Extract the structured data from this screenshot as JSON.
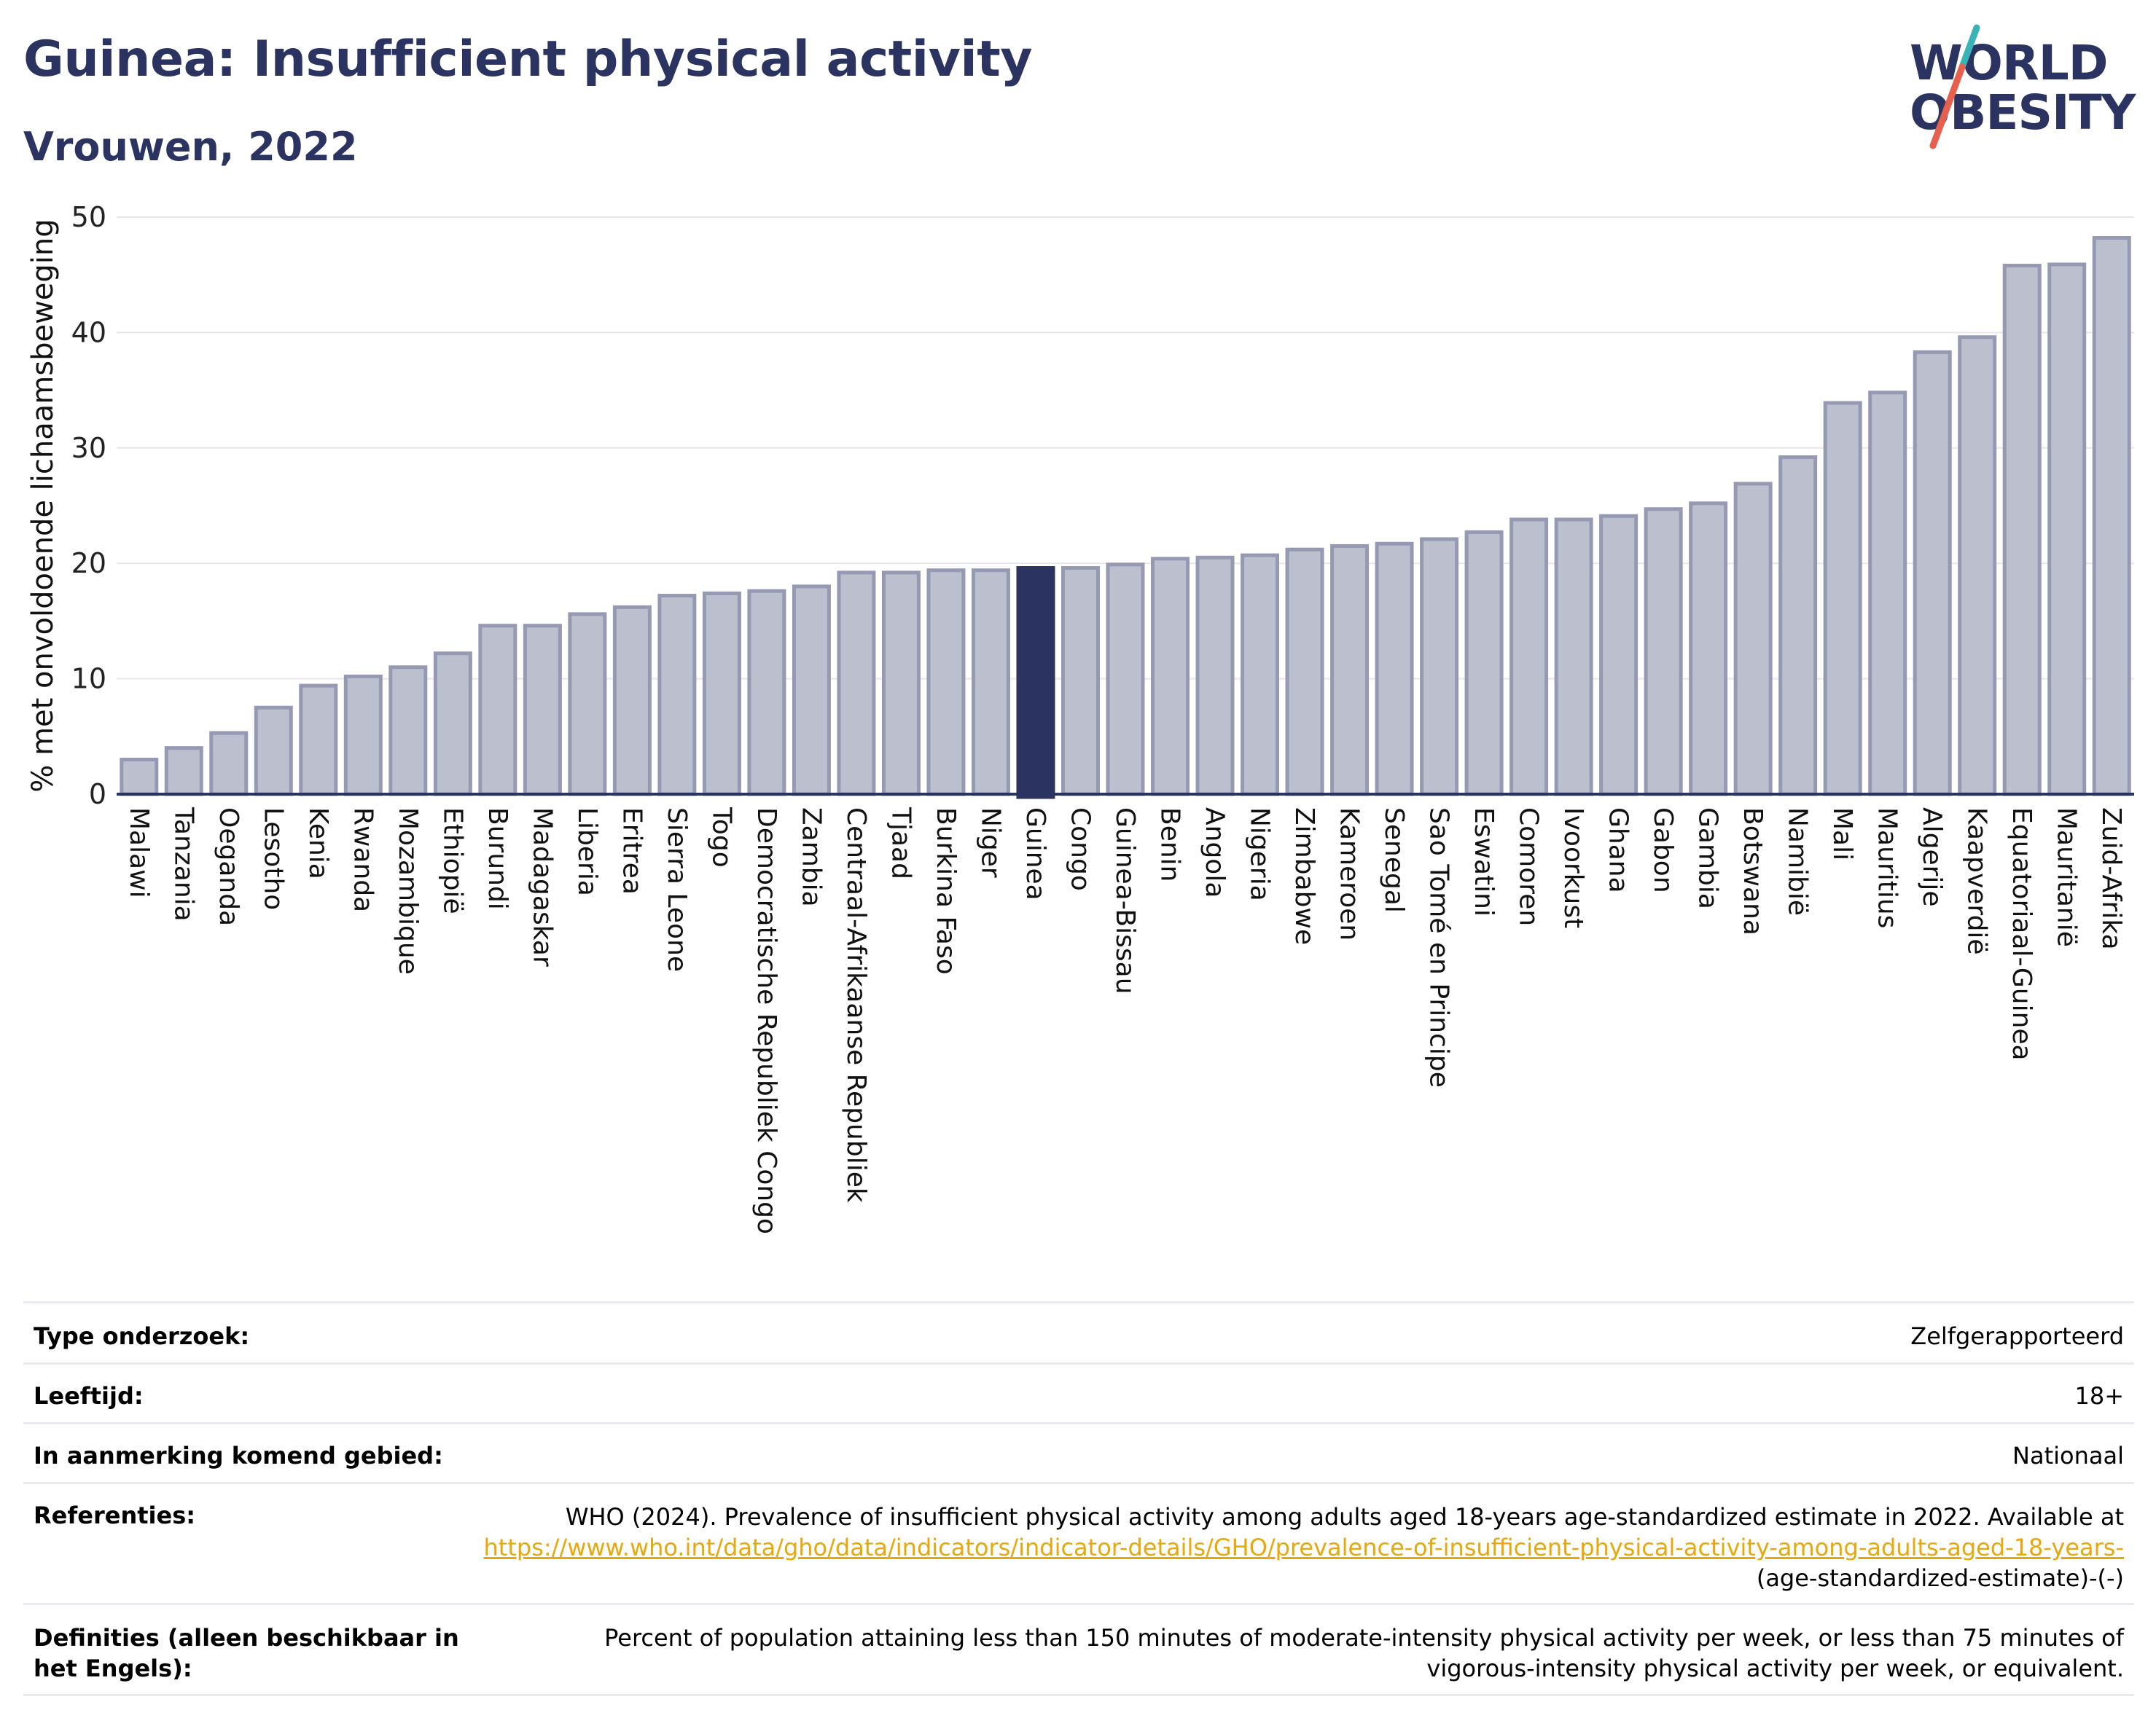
{
  "header": {
    "title": "Guinea: Insufficient physical activity",
    "subtitle": "Vrouwen, 2022",
    "logo_line1": "WORLD",
    "logo_line2": "OBESITY"
  },
  "colors": {
    "highlight": "#2b3461",
    "bar_fill": "#bcc0ce",
    "bar_stroke": "#9599b2",
    "grid": "#e6e7ec",
    "logo_slash_teal": "#3ab3b7",
    "logo_slash_red": "#e7604d",
    "link": "#e8a80c"
  },
  "chart_data": {
    "type": "bar",
    "ylabel": "% met onvoldoende lichaamsbeweging",
    "ylim": [
      0,
      50
    ],
    "yticks": [
      0,
      10,
      20,
      30,
      40,
      50
    ],
    "grid": true,
    "highlight_category": "Guinea",
    "categories": [
      "Malawi",
      "Tanzania",
      "Oeganda",
      "Lesotho",
      "Kenia",
      "Rwanda",
      "Mozambique",
      "Ethiopië",
      "Burundi",
      "Madagaskar",
      "Liberia",
      "Eritrea",
      "Sierra Leone",
      "Togo",
      "Democratische Republiek Congo",
      "Zambia",
      "Centraal-Afrikaanse Republiek",
      "Tjaad",
      "Burkina Faso",
      "Niger",
      "Guinea",
      "Congo",
      "Guinea-Bissau",
      "Benin",
      "Angola",
      "Nigeria",
      "Zimbabwe",
      "Kameroen",
      "Senegal",
      "Sao Tomé en Principe",
      "Eswatini",
      "Comoren",
      "Ivoorkust",
      "Ghana",
      "Gabon",
      "Gambia",
      "Botswana",
      "Namibië",
      "Mali",
      "Mauritius",
      "Algerije",
      "Kaapverdië",
      "Equatoriaal-Guinea",
      "Mauritanië",
      "Zuid-Afrika"
    ],
    "values": [
      3.0,
      4.0,
      5.3,
      7.5,
      9.4,
      10.2,
      11.0,
      12.2,
      14.6,
      14.6,
      15.6,
      16.2,
      17.2,
      17.4,
      17.6,
      18.0,
      19.2,
      19.2,
      19.4,
      19.4,
      19.6,
      19.6,
      19.9,
      20.4,
      20.5,
      20.7,
      21.2,
      21.5,
      21.7,
      22.1,
      22.7,
      23.8,
      23.8,
      24.1,
      24.7,
      25.2,
      26.9,
      29.2,
      33.9,
      34.8,
      38.3,
      39.6,
      45.8,
      45.9,
      48.2
    ]
  },
  "info_table": {
    "type_label": "Type onderzoek:",
    "type_value": "Zelfgerapporteerd",
    "age_label": "Leeftijd:",
    "age_value": "18+",
    "area_label": "In aanmerking komend gebied:",
    "area_value": "Nationaal",
    "ref_label": "Referenties:",
    "ref_text": "WHO (2024). Prevalence of insufficient physical activity among adults aged 18-years age-standardized estimate in 2022. Available at",
    "ref_link": "https://www.who.int/data/gho/data/indicators/indicator-details/GHO/prevalence-of-insufficient-physical-activity-among-adults-aged-18-years-",
    "ref_suffix": "(age-standardized-estimate)-(-)",
    "def_label": "Definities (alleen beschikbaar in het Engels):",
    "def_text": "Percent of population attaining less than 150 minutes of moderate-intensity physical activity per week, or less than 75 minutes of vigorous-intensity physical activity per week, or equivalent."
  }
}
